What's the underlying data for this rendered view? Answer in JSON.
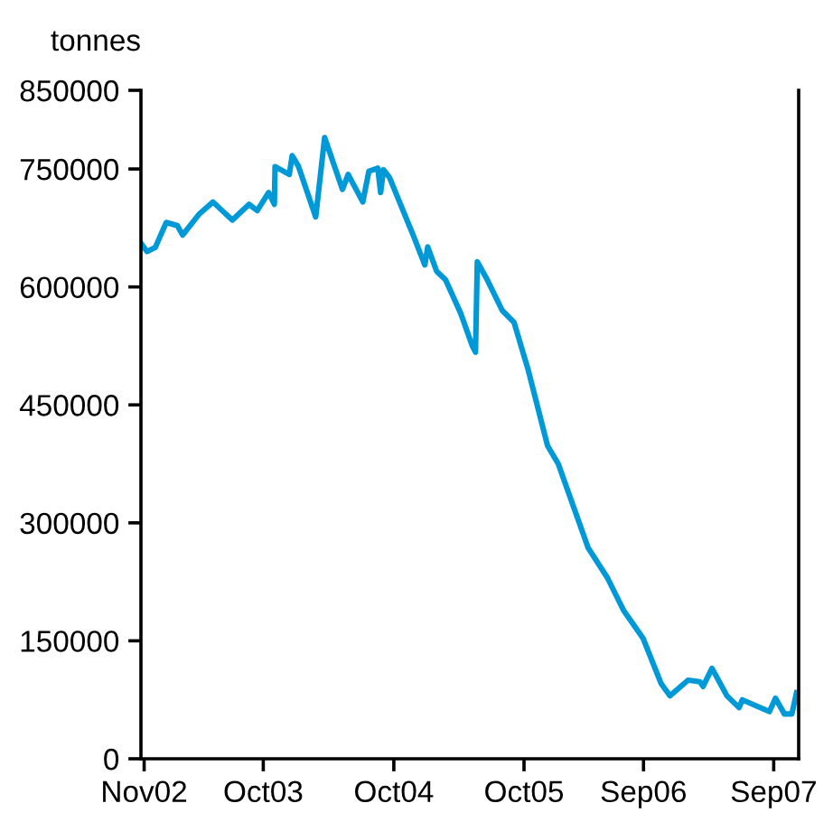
{
  "chart_data": {
    "type": "line",
    "ylabel": "tonnes",
    "x": [
      "2002-10-24",
      "2002-11-09",
      "2002-12-02",
      "2003-01-02",
      "2003-02-02",
      "2003-02-17",
      "2003-04-05",
      "2003-05-13",
      "2003-07-06",
      "2003-08-22",
      "2003-09-14",
      "2003-10-16",
      "2003-11-01",
      "2003-11-03",
      "2003-12-13",
      "2003-12-21",
      "2004-01-07",
      "2004-02-25",
      "2004-03-21",
      "2004-05-10",
      "2004-05-26",
      "2004-07-06",
      "2004-07-23",
      "2004-08-17",
      "2004-08-25",
      "2004-09-02",
      "2004-09-19",
      "2004-11-24",
      "2004-12-27",
      "2005-01-04",
      "2005-01-29",
      "2005-02-23",
      "2005-04-06",
      "2005-05-09",
      "2005-05-18",
      "2005-05-23",
      "2005-06-20",
      "2005-08-01",
      "2005-09-03",
      "2005-10-13",
      "2005-12-06",
      "2006-01-05",
      "2006-03-30",
      "2006-05-23",
      "2006-07-08",
      "2006-08-31",
      "2006-10-20",
      "2006-11-14",
      "2007-01-04",
      "2007-02-06",
      "2007-02-15",
      "2007-03-12",
      "2007-04-23",
      "2007-05-27",
      "2007-06-05",
      "2007-08-20",
      "2007-09-06",
      "2007-10-01",
      "2007-10-22",
      "2007-11-04"
    ],
    "series": [
      {
        "color": "#0099d8",
        "values": [
          655000,
          645000,
          650000,
          682000,
          678000,
          666000,
          693000,
          708000,
          685000,
          705000,
          697000,
          720000,
          705000,
          753000,
          743000,
          767000,
          754000,
          689000,
          790000,
          724000,
          743000,
          708000,
          747000,
          751000,
          720000,
          749000,
          739000,
          666000,
          628000,
          651000,
          620000,
          609000,
          567000,
          525000,
          517000,
          632000,
          609000,
          570000,
          555000,
          494000,
          398000,
          375000,
          268000,
          230000,
          188000,
          153000,
          96000,
          80000,
          100000,
          98000,
          92000,
          115000,
          80000,
          65000,
          75000,
          60000,
          77000,
          57000,
          57000,
          84000
        ]
      }
    ],
    "xlim": [
      "2002-10-23",
      "2007-11-10"
    ],
    "xticks": [
      {
        "value": "2002-11-01",
        "label": "Nov02"
      },
      {
        "value": "2003-10-01",
        "label": "Oct03"
      },
      {
        "value": "2004-10-01",
        "label": "Oct04"
      },
      {
        "value": "2005-10-01",
        "label": "Oct05"
      },
      {
        "value": "2006-09-01",
        "label": "Sep06"
      },
      {
        "value": "2007-09-01",
        "label": "Sep07"
      }
    ],
    "ylim": [
      0,
      850000
    ],
    "yticks": [
      0,
      150000,
      300000,
      450000,
      600000,
      750000,
      850000
    ],
    "grid": false,
    "legend": false,
    "marker": "none",
    "line_style": "solid"
  }
}
